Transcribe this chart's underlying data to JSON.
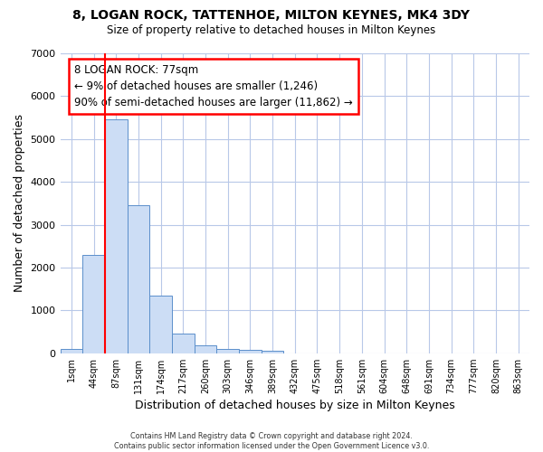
{
  "title1": "8, LOGAN ROCK, TATTENHOE, MILTON KEYNES, MK4 3DY",
  "title2": "Size of property relative to detached houses in Milton Keynes",
  "xlabel": "Distribution of detached houses by size in Milton Keynes",
  "ylabel": "Number of detached properties",
  "footer1": "Contains HM Land Registry data © Crown copyright and database right 2024.",
  "footer2": "Contains public sector information licensed under the Open Government Licence v3.0.",
  "bin_labels": [
    "1sqm",
    "44sqm",
    "87sqm",
    "131sqm",
    "174sqm",
    "217sqm",
    "260sqm",
    "303sqm",
    "346sqm",
    "389sqm",
    "432sqm",
    "475sqm",
    "518sqm",
    "561sqm",
    "604sqm",
    "648sqm",
    "691sqm",
    "734sqm",
    "777sqm",
    "820sqm",
    "863sqm"
  ],
  "bar_values": [
    100,
    2300,
    5450,
    3450,
    1350,
    460,
    190,
    100,
    75,
    50,
    0,
    0,
    0,
    0,
    0,
    0,
    0,
    0,
    0,
    0,
    0
  ],
  "bar_color": "#ccddf5",
  "bar_edge_color": "#5b8fcb",
  "ylim": [
    0,
    7000
  ],
  "yticks": [
    0,
    1000,
    2000,
    3000,
    4000,
    5000,
    6000,
    7000
  ],
  "grid_color": "#b8c8e8",
  "property_line_x": 1.5,
  "property_line_color": "red",
  "annotation_text": "8 LOGAN ROCK: 77sqm\n← 9% of detached houses are smaller (1,246)\n90% of semi-detached houses are larger (11,862) →",
  "annotation_box_color": "white",
  "annotation_box_edge": "red",
  "background_color": "#ffffff",
  "plot_bg_color": "#ffffff"
}
